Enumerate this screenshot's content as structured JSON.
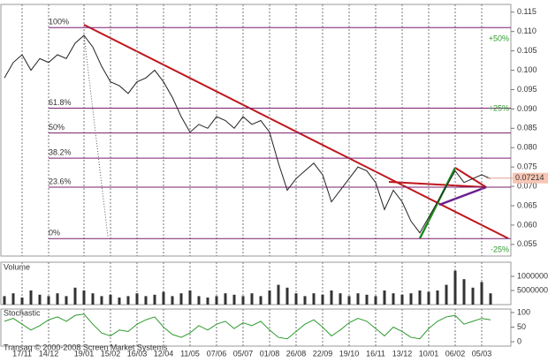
{
  "chart_data": [
    {
      "type": "line",
      "categories": [
        null,
        null,
        "17/11",
        null,
        null,
        "14/12",
        null,
        null,
        null,
        "19/01",
        null,
        null,
        "15/02",
        null,
        null,
        "16/03",
        null,
        null,
        "12/04",
        null,
        null,
        "11/05",
        null,
        null,
        "07/06",
        null,
        null,
        "05/07",
        null,
        null,
        "01/08",
        null,
        null,
        "26/08",
        null,
        null,
        "22/09",
        null,
        null,
        "19/10",
        null,
        null,
        "16/11",
        null,
        null,
        "13/12",
        null,
        null,
        "10/01",
        null,
        null,
        "06/02",
        null,
        null,
        "05/03",
        null
      ],
      "values": [
        0.098,
        0.102,
        0.104,
        0.1,
        0.103,
        0.102,
        0.104,
        0.103,
        0.107,
        0.109,
        0.106,
        0.101,
        0.097,
        0.096,
        0.094,
        0.097,
        0.098,
        0.1,
        0.097,
        0.093,
        0.088,
        0.084,
        0.086,
        0.085,
        0.088,
        0.087,
        0.085,
        0.088,
        0.086,
        0.087,
        0.084,
        0.076,
        0.069,
        0.072,
        0.074,
        0.076,
        0.073,
        0.066,
        0.069,
        0.072,
        0.075,
        0.074,
        0.071,
        0.064,
        0.069,
        0.066,
        0.061,
        0.058,
        0.062,
        0.066,
        0.07,
        0.074,
        0.071,
        0.072,
        0.073,
        0.072
      ],
      "color": "#222222",
      "ylim": [
        0.052,
        0.117
      ],
      "yticks": [
        0.115,
        {
          "value": 0.11,
          "label": "0.110"
        },
        0.105,
        {
          "value": 0.1,
          "label": "0.100"
        },
        0.095,
        {
          "value": 0.09,
          "label": "0.090"
        },
        0.085,
        {
          "value": 0.08,
          "label": "0.080"
        },
        0.075,
        {
          "value": 0.07,
          "label": "0.070"
        },
        0.065,
        {
          "value": 0.06,
          "label": "0.060"
        },
        0.055
      ],
      "fib_levels": [
        {
          "value": 0.111,
          "label": "100%"
        },
        {
          "value": 0.0902,
          "label": "61.8%"
        },
        {
          "value": 0.0838,
          "label": "50%"
        },
        {
          "value": 0.0773,
          "label": "38.2%"
        },
        {
          "value": 0.0698,
          "label": "23.6%"
        },
        {
          "value": 0.0565,
          "label": "0%"
        }
      ],
      "fib_color": "#7a1f6e",
      "extension_labels": [
        "+50%",
        "+25%",
        "-25%"
      ],
      "last_price": 0.07214,
      "grid": true
    },
    {
      "type": "bar",
      "title": "Volume",
      "values": [
        3000000,
        4000000,
        2500000,
        5000000,
        3500000,
        3000000,
        4000000,
        3000000,
        6000000,
        5000000,
        4000000,
        3000000,
        3500000,
        2500000,
        3000000,
        4000000,
        3000000,
        3500000,
        4500000,
        3000000,
        4000000,
        5000000,
        3000000,
        2500000,
        3000000,
        4000000,
        3500000,
        3000000,
        4000000,
        3000000,
        5000000,
        7000000,
        6000000,
        4000000,
        3000000,
        4000000,
        3500000,
        5000000,
        4000000,
        3000000,
        4000000,
        3500000,
        3000000,
        5000000,
        4000000,
        3500000,
        4000000,
        5000000,
        4500000,
        5000000,
        7000000,
        12000000,
        9000000,
        6000000,
        8000000,
        4000000
      ],
      "color": "#333333",
      "ylim": [
        0,
        15000000
      ],
      "yticks": [
        10000000,
        5000000
      ]
    },
    {
      "type": "line",
      "title": "Stochastic",
      "values": [
        70,
        80,
        60,
        40,
        55,
        75,
        85,
        70,
        90,
        95,
        60,
        30,
        20,
        40,
        35,
        60,
        75,
        85,
        50,
        25,
        15,
        30,
        55,
        40,
        60,
        70,
        45,
        65,
        55,
        70,
        40,
        15,
        10,
        35,
        60,
        75,
        50,
        20,
        40,
        65,
        80,
        70,
        45,
        20,
        50,
        35,
        15,
        10,
        45,
        70,
        85,
        90,
        60,
        70,
        80,
        75
      ],
      "color": "#2e9a2e",
      "ylim": [
        -15,
        112
      ],
      "yticks": [
        100,
        50,
        0
      ]
    }
  ],
  "footer": "Transaq © 2000-2008 Screen Market Systems"
}
